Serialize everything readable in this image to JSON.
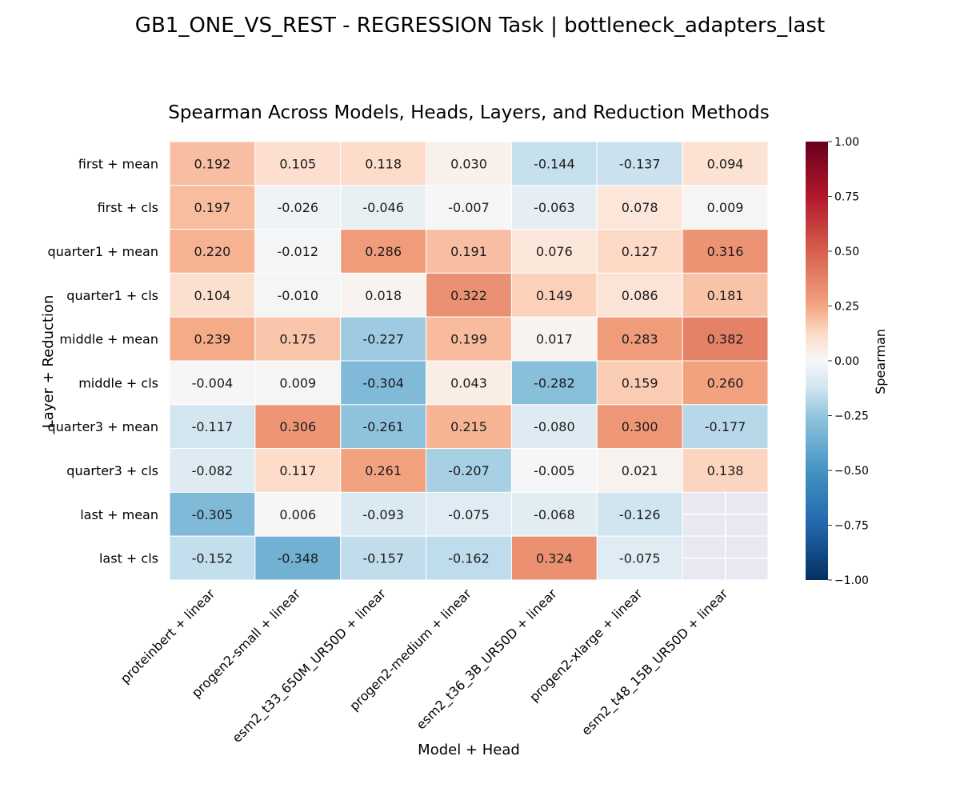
{
  "figure": {
    "suptitle": "GB1_ONE_VS_REST - REGRESSION Task | bottleneck_adapters_last"
  },
  "chart_data": {
    "type": "heatmap",
    "title": "Spearman Across Models, Heads, Layers, and Reduction Methods",
    "xlabel": "Model + Head",
    "ylabel": "Layer + Reduction",
    "x_categories": [
      "proteinbert + linear",
      "progen2-small + linear",
      "esm2_t33_650M_UR50D + linear",
      "progen2-medium + linear",
      "esm2_t36_3B_UR50D + linear",
      "progen2-xlarge + linear",
      "esm2_t48_15B_UR50D + linear"
    ],
    "y_categories": [
      "first + mean",
      "first + cls",
      "quarter1 + mean",
      "quarter1 + cls",
      "middle + mean",
      "middle + cls",
      "quarter3 + mean",
      "quarter3 + cls",
      "last + mean",
      "last + cls"
    ],
    "values": [
      [
        0.192,
        0.105,
        0.118,
        0.03,
        -0.144,
        -0.137,
        0.094
      ],
      [
        0.197,
        -0.026,
        -0.046,
        -0.007,
        -0.063,
        0.078,
        0.009
      ],
      [
        0.22,
        -0.012,
        0.286,
        0.191,
        0.076,
        0.127,
        0.316
      ],
      [
        0.104,
        -0.01,
        0.018,
        0.322,
        0.149,
        0.086,
        0.181
      ],
      [
        0.239,
        0.175,
        -0.227,
        0.199,
        0.017,
        0.283,
        0.382
      ],
      [
        -0.004,
        0.009,
        -0.304,
        0.043,
        -0.282,
        0.159,
        0.26
      ],
      [
        -0.117,
        0.306,
        -0.261,
        0.215,
        -0.08,
        0.3,
        -0.177
      ],
      [
        -0.082,
        0.117,
        0.261,
        -0.207,
        -0.005,
        0.021,
        0.138
      ],
      [
        -0.305,
        0.006,
        -0.093,
        -0.075,
        -0.068,
        -0.126,
        null
      ],
      [
        -0.152,
        -0.348,
        -0.157,
        -0.162,
        0.324,
        -0.075,
        null
      ]
    ],
    "value_format": "3 decimals",
    "missing_color": "#e8e8f2",
    "colorbar": {
      "label": "Spearman",
      "range": [
        -1.0,
        1.0
      ],
      "ticks": [
        "1.00",
        "0.75",
        "0.50",
        "0.25",
        "0.00",
        "−0.25",
        "−0.50",
        "−0.75",
        "−1.00"
      ],
      "colormap": "RdBu_r"
    }
  }
}
